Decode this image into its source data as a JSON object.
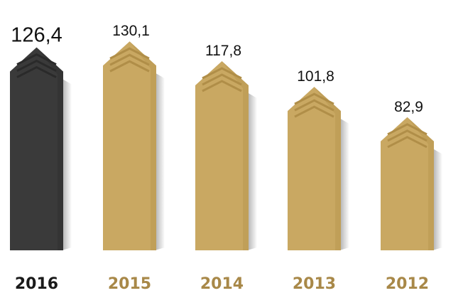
{
  "chart_data": {
    "type": "bar",
    "categories": [
      "2016",
      "2015",
      "2014",
      "2013",
      "2012"
    ],
    "values": [
      126.4,
      130.1,
      117.8,
      101.8,
      82.9
    ],
    "value_labels": [
      "126,4",
      "130,1",
      "117,8",
      "101,8",
      "82,9"
    ],
    "highlight_index": 0,
    "colors": {
      "highlight": "#3a3a3a",
      "highlight_dark": "#2a2a2a",
      "bar": "#c9a862",
      "bar_dark": "#b08e48",
      "highlight_label": "#1a1a1a",
      "label": "#a88848"
    },
    "title": "",
    "xlabel": "",
    "ylabel": "",
    "grid": false,
    "legend": "none"
  }
}
